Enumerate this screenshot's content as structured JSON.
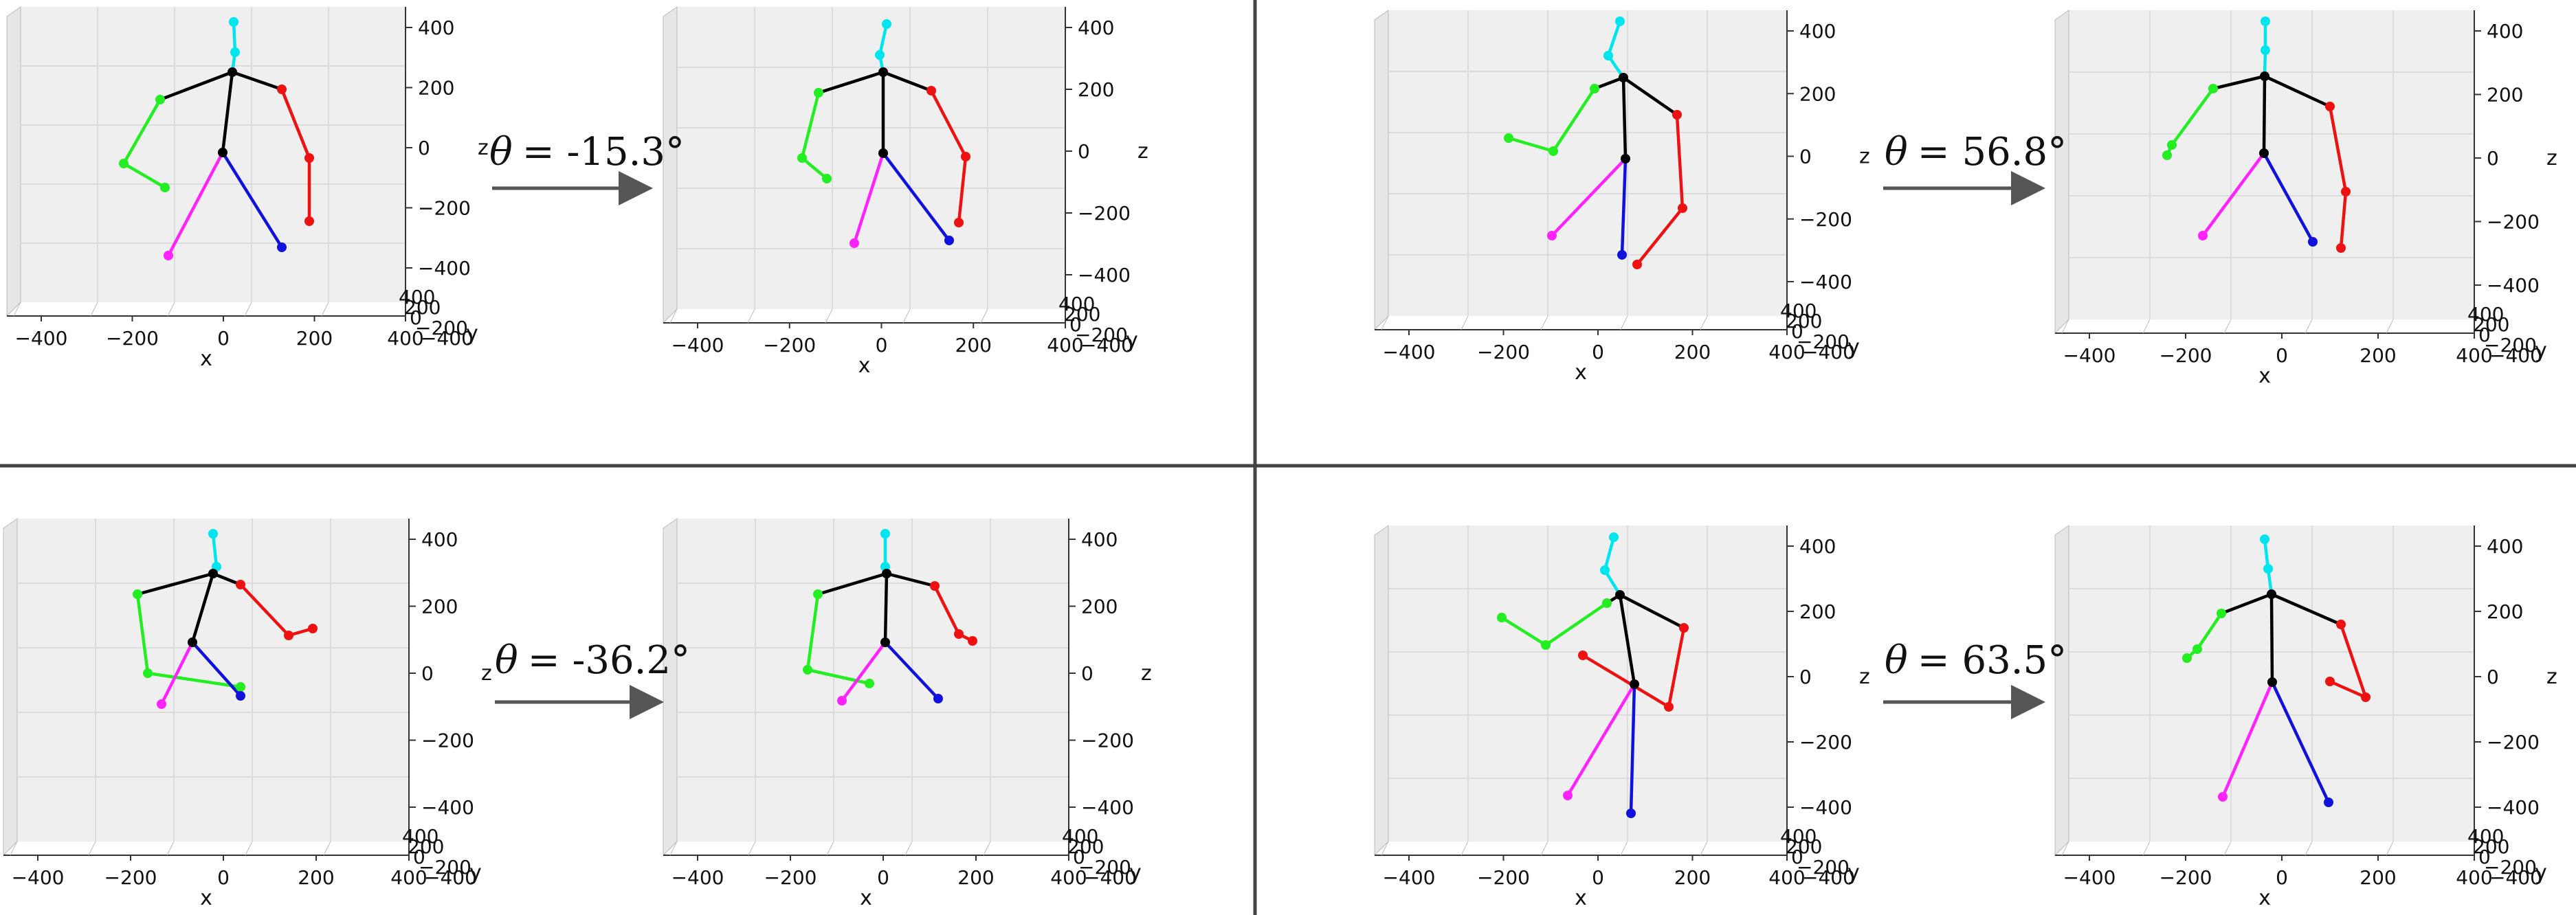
{
  "figure": {
    "description": "Four rotation examples of a 3D skeleton: original pose rotated by angle theta about the vertical axis.",
    "colors": {
      "head": "#00e5ee",
      "torso": "#000000",
      "left_arm": "#22ee22",
      "right_arm": "#ee1111",
      "left_leg": "#ff22ff",
      "right_leg": "#1111dd",
      "pane": "#efefef",
      "grid": "#d6d6d6",
      "divider": "#444444",
      "arrow": "#555555"
    },
    "axis_labels": {
      "x": "x",
      "y": "y",
      "z": "z"
    },
    "axis_ticks": {
      "x": [
        "−400",
        "−200",
        "0",
        "200",
        "400"
      ],
      "z": [
        "400",
        "200",
        "0",
        "−200",
        "−400"
      ],
      "y": [
        "400",
        "200",
        "0",
        "−200",
        "−400"
      ]
    },
    "panels": [
      {
        "id": "top-left",
        "theta_symbol": "θ",
        "theta_value": "= -15.3°"
      },
      {
        "id": "top-right",
        "theta_symbol": "θ",
        "theta_value": "= 56.8°"
      },
      {
        "id": "bottom-left",
        "theta_symbol": "θ",
        "theta_value": "= -36.2°"
      },
      {
        "id": "bottom-right",
        "theta_symbol": "θ",
        "theta_value": "= 63.5°"
      }
    ]
  }
}
